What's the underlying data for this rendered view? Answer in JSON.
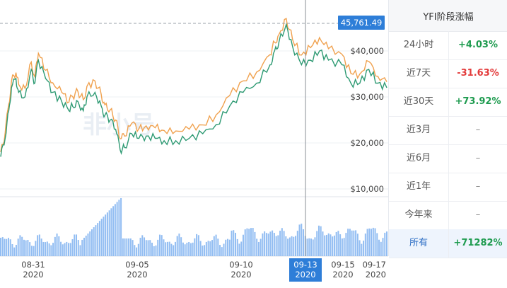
{
  "chart_data": {
    "type": "line",
    "series": [
      {
        "color": "#2e9a73"
      },
      {
        "color": "#f0a14e"
      }
    ],
    "volume_color": "#7fb2f0",
    "y_ticks": [
      "$40,000",
      "$30,000",
      "$20,000",
      "$10,000"
    ],
    "y_tick_values": [
      40000,
      30000,
      20000,
      10000
    ],
    "x_ticks": [
      {
        "d": "08-31",
        "y": "2020"
      },
      {
        "d": "09-05",
        "y": "2020"
      },
      {
        "d": "09-10",
        "y": "2020"
      },
      {
        "d": "09-13",
        "y": "2020"
      },
      {
        "d": "09-15",
        "y": "2020"
      },
      {
        "d": "09-17",
        "y": "2020"
      }
    ],
    "crosshair_x_label": {
      "d": "09-13",
      "y": "2020"
    },
    "crosshair_value": "45,761.49",
    "green_points": [
      [
        0,
        0.4,
        17000
      ],
      [
        0.05,
        0.8,
        21000
      ],
      [
        0.09,
        1.0,
        27000
      ],
      [
        0.12,
        1.2,
        32000
      ],
      [
        0.17,
        1.2,
        34000
      ],
      [
        0.2,
        1.1,
        31000
      ],
      [
        0.27,
        1.0,
        30000
      ],
      [
        0.34,
        1.0,
        36000
      ],
      [
        0.38,
        0.9,
        33000
      ],
      [
        0.42,
        1.0,
        38000
      ],
      [
        0.5,
        1.0,
        34000
      ],
      [
        0.58,
        1.0,
        31000
      ],
      [
        0.68,
        1.2,
        29000
      ],
      [
        0.76,
        1.3,
        27000
      ],
      [
        0.8,
        1.2,
        28000
      ],
      [
        0.86,
        1.3,
        29000
      ],
      [
        0.92,
        1.4,
        27000
      ],
      [
        0.96,
        1.6,
        30000
      ],
      [
        1.05,
        2.1,
        31000
      ],
      [
        1.12,
        2.8,
        28000
      ],
      [
        1.16,
        3.1,
        26000
      ],
      [
        1.22,
        3.3,
        25000
      ],
      [
        1.28,
        3.0,
        23000
      ],
      [
        1.33,
        2.4,
        18500
      ],
      [
        1.38,
        1.1,
        19000
      ],
      [
        1.46,
        0.9,
        22000
      ],
      [
        1.54,
        1.0,
        21000
      ],
      [
        1.62,
        1.0,
        21500
      ],
      [
        1.72,
        1.0,
        21000
      ],
      [
        1.82,
        1.0,
        20500
      ],
      [
        1.95,
        1.1,
        20500
      ],
      [
        2.1,
        1.3,
        21000
      ],
      [
        2.25,
        1.6,
        22000
      ],
      [
        2.4,
        2.0,
        24000
      ],
      [
        2.55,
        2.3,
        28000
      ],
      [
        2.7,
        2.5,
        31000
      ],
      [
        2.85,
        2.7,
        33000
      ],
      [
        3.0,
        3.0,
        37000
      ],
      [
        3.05,
        3.1,
        40000
      ],
      [
        3.1,
        3.2,
        42000
      ],
      [
        3.18,
        3.1,
        45761
      ],
      [
        3.25,
        2.7,
        41000
      ],
      [
        3.35,
        2.4,
        37000
      ],
      [
        3.45,
        2.4,
        38000
      ],
      [
        3.55,
        2.3,
        40000
      ],
      [
        3.65,
        2.2,
        38000
      ],
      [
        3.8,
        2.0,
        37000
      ],
      [
        3.9,
        2.3,
        33000
      ],
      [
        4.0,
        2.3,
        33000
      ],
      [
        4.1,
        2.4,
        36000
      ],
      [
        4.2,
        2.5,
        33000
      ],
      [
        4.3,
        2.4,
        32000
      ]
    ],
    "orange_offsets": [
      1000,
      1200,
      1500,
      1400,
      1300,
      1700,
      1900,
      1600,
      1400,
      1500,
      1800,
      2100,
      2000,
      1900,
      2100,
      2200,
      2400,
      2300,
      2500,
      2500,
      2300,
      2200,
      2000,
      2400,
      2500,
      2300,
      2100,
      2200,
      2300,
      2200,
      2100,
      2000,
      1900,
      2100,
      2300,
      2500,
      2400,
      2200,
      1900,
      1600,
      1300,
      1500,
      2100,
      2700,
      2900,
      2500,
      2300,
      2100,
      2000,
      1700,
      1500,
      1300
    ]
  },
  "watermark": "非小号",
  "panel": {
    "title": "YFI阶段涨幅",
    "rows": [
      {
        "label": "24小时",
        "value": "+4.03%",
        "kind": "pos"
      },
      {
        "label": "近7天",
        "value": "-31.63%",
        "kind": "neg"
      },
      {
        "label": "近30天",
        "value": "+73.92%",
        "kind": "pos"
      },
      {
        "label": "近3月",
        "value": "–",
        "kind": "dash"
      },
      {
        "label": "近6月",
        "value": "–",
        "kind": "dash"
      },
      {
        "label": "近1年",
        "value": "–",
        "kind": "dash"
      },
      {
        "label": "今年来",
        "value": "–",
        "kind": "dash"
      },
      {
        "label": "所有",
        "value": "+71282%",
        "kind": "pos"
      }
    ]
  }
}
